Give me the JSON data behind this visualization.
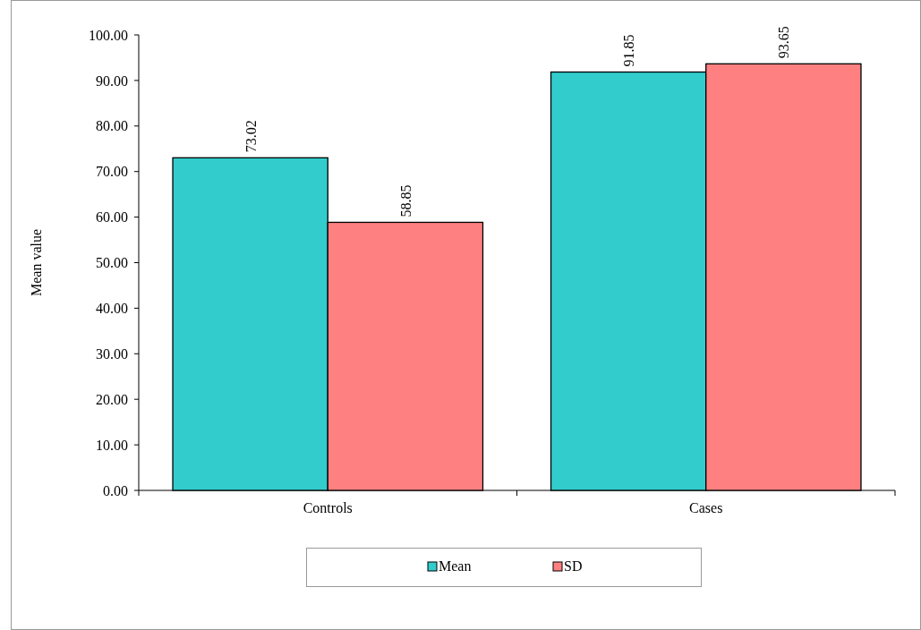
{
  "chart_data": {
    "type": "bar",
    "ylabel": "Mean value",
    "categories": [
      "Controls",
      "Cases"
    ],
    "series": [
      {
        "name": "Mean",
        "color": "#33cccc",
        "values": [
          73.02,
          91.85
        ]
      },
      {
        "name": "SD",
        "color": "#ff8080",
        "values": [
          58.85,
          93.65
        ]
      }
    ],
    "ylim": [
      0,
      100
    ],
    "yticks": [
      {
        "value": 0,
        "label": "0.00"
      },
      {
        "value": 10,
        "label": "10.00"
      },
      {
        "value": 20,
        "label": "20.00"
      },
      {
        "value": 30,
        "label": "30.00"
      },
      {
        "value": 40,
        "label": "40.00"
      },
      {
        "value": 50,
        "label": "50.00"
      },
      {
        "value": 60,
        "label": "60.00"
      },
      {
        "value": 70,
        "label": "70.00"
      },
      {
        "value": 80,
        "label": "80.00"
      },
      {
        "value": 90,
        "label": "90.00"
      },
      {
        "value": 100,
        "label": "100.00"
      }
    ],
    "data_labels": true,
    "legend": "bottom",
    "grid": false
  }
}
